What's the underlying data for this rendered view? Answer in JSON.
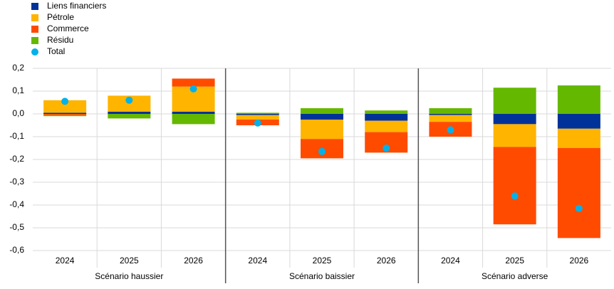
{
  "chart_data": {
    "type": "stacked-bar",
    "categories": [
      "2024",
      "2025",
      "2026",
      "2024",
      "2025",
      "2026",
      "2024",
      "2025",
      "2026"
    ],
    "groups": [
      "Scénario haussier",
      "Scénario baissier",
      "Scénario adverse"
    ],
    "series": [
      {
        "name": "Liens financiers",
        "color": "#003299",
        "values": [
          0.005,
          0.01,
          0.01,
          -0.005,
          -0.025,
          -0.03,
          -0.005,
          -0.045,
          -0.065
        ]
      },
      {
        "name": "Pétrole",
        "color": "#ffb400",
        "values": [
          0.055,
          0.07,
          0.11,
          -0.02,
          -0.085,
          -0.05,
          -0.03,
          -0.1,
          -0.085
        ]
      },
      {
        "name": "Commerce",
        "color": "#ff4b00",
        "values": [
          -0.005,
          0,
          0.035,
          -0.025,
          -0.085,
          -0.09,
          -0.065,
          -0.34,
          -0.395
        ]
      },
      {
        "name": "Résidu",
        "color": "#65b800",
        "values": [
          -0.005,
          -0.02,
          -0.045,
          0.005,
          0.025,
          0.015,
          0.025,
          0.115,
          0.125
        ]
      }
    ],
    "total": {
      "name": "Total",
      "color": "#00b1ea",
      "values": [
        0.055,
        0.06,
        0.11,
        -0.04,
        -0.165,
        -0.15,
        -0.07,
        -0.36,
        -0.415
      ]
    },
    "ylim": [
      -0.6,
      0.2
    ],
    "yticks": [
      {
        "value": 0.2,
        "label": "0,2"
      },
      {
        "value": 0.1,
        "label": "0,1"
      },
      {
        "value": 0,
        "label": "0,0"
      },
      {
        "value": -0.1,
        "label": "-0,1"
      },
      {
        "value": -0.2,
        "label": "-0,2"
      },
      {
        "value": -0.3,
        "label": "-0,3"
      },
      {
        "value": -0.4,
        "label": "-0,4"
      },
      {
        "value": -0.5,
        "label": "-0,5"
      },
      {
        "value": -0.6,
        "label": "-0,6"
      }
    ],
    "grid": true,
    "legend": "top-left"
  }
}
